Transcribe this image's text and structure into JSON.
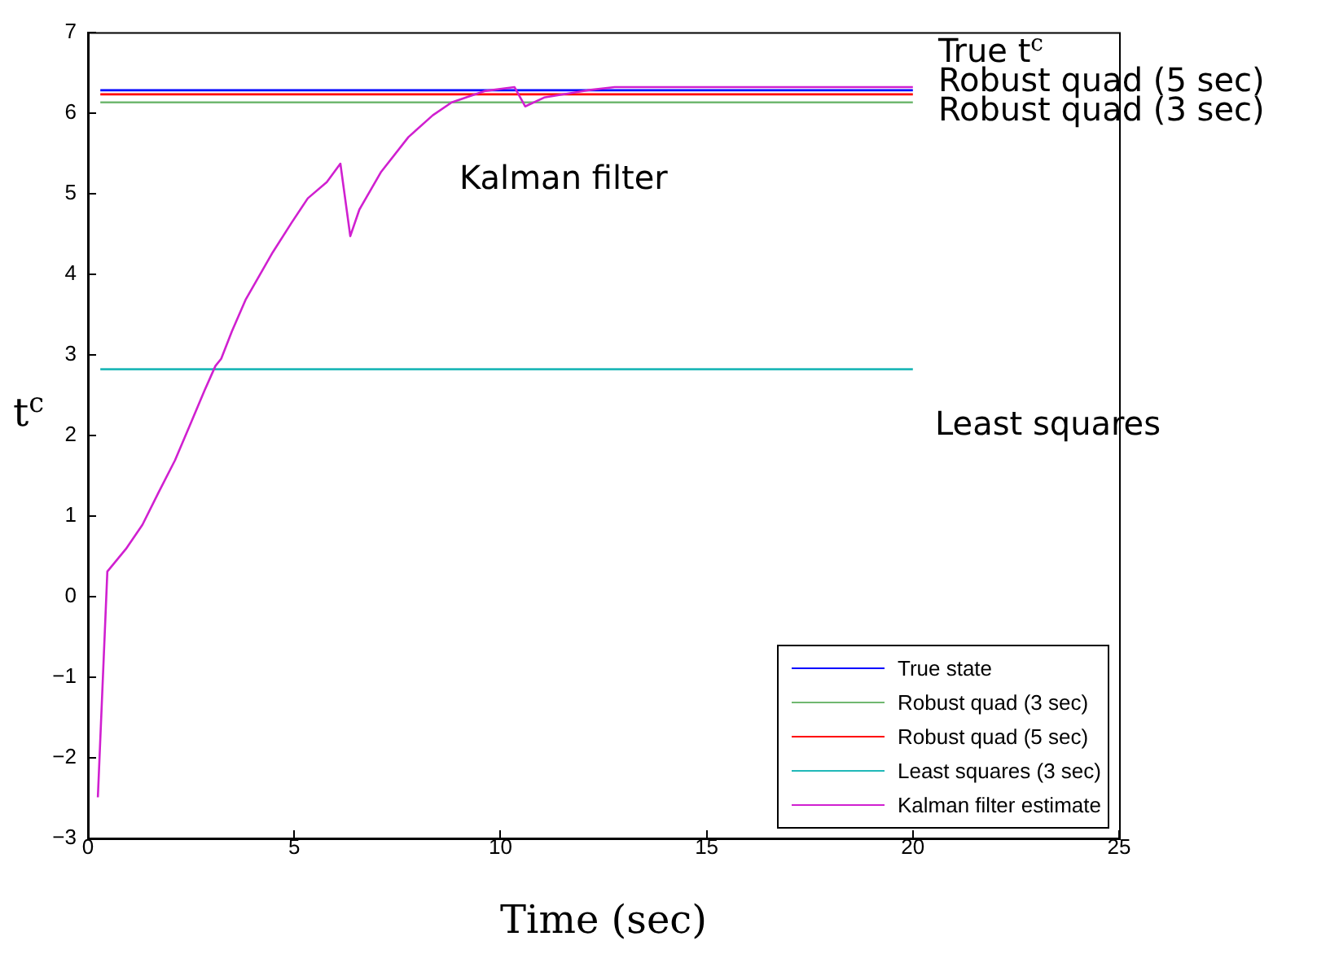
{
  "chart_data": {
    "type": "line",
    "xlabel": "Time (sec)",
    "ylabel": "t$^{c}$",
    "xlim": [
      0,
      25
    ],
    "xticks": [
      0,
      5,
      10,
      15,
      20,
      25
    ],
    "ylim": [
      -3,
      7
    ],
    "yticks": [
      -3,
      -2,
      -1,
      0,
      1,
      2,
      3,
      4,
      5,
      6,
      7
    ],
    "grid": false,
    "legend": "bottom right",
    "marker": "none",
    "line_style": "solid",
    "series": [
      {
        "name": "True state",
        "color": "#0000ff",
        "x": [
          0.3,
          20
        ],
        "values": [
          6.28,
          6.28
        ]
      },
      {
        "name": "Robust quad (3 sec)",
        "color": "#70b870",
        "x": [
          0.3,
          20
        ],
        "values": [
          6.13,
          6.13
        ]
      },
      {
        "name": "Robust quad (5 sec)",
        "color": "#ff0000",
        "x": [
          0.3,
          20
        ],
        "values": [
          6.23,
          6.23
        ]
      },
      {
        "name": "Least squares (3 sec)",
        "color": "#20b8b8",
        "x": [
          0.3,
          20
        ],
        "values": [
          2.82,
          2.82
        ]
      },
      {
        "name": "Kalman filter estimate",
        "color": "#d020d0",
        "x": [
          0.24,
          0.47,
          0.92,
          1.32,
          1.71,
          2.11,
          2.5,
          2.83,
          3.09,
          3.23,
          3.49,
          3.82,
          4.48,
          4.94,
          5.33,
          5.79,
          6.12,
          6.36,
          6.58,
          7.11,
          7.77,
          8.36,
          8.82,
          9.61,
          10.34,
          10.6,
          11.06,
          12.11,
          12.77,
          20
        ],
        "values": [
          -2.49,
          0.31,
          0.59,
          0.89,
          1.29,
          1.69,
          2.16,
          2.56,
          2.86,
          2.95,
          3.29,
          3.68,
          4.27,
          4.64,
          4.94,
          5.14,
          5.37,
          4.47,
          4.8,
          5.27,
          5.7,
          5.97,
          6.13,
          6.27,
          6.32,
          6.08,
          6.19,
          6.28,
          6.32,
          6.32
        ]
      }
    ],
    "annotations": [
      "True t$^{c}$",
      "Robust quad (5 sec)",
      "Robust quad (3 sec)",
      "Kalman filter",
      "Least squares"
    ]
  }
}
